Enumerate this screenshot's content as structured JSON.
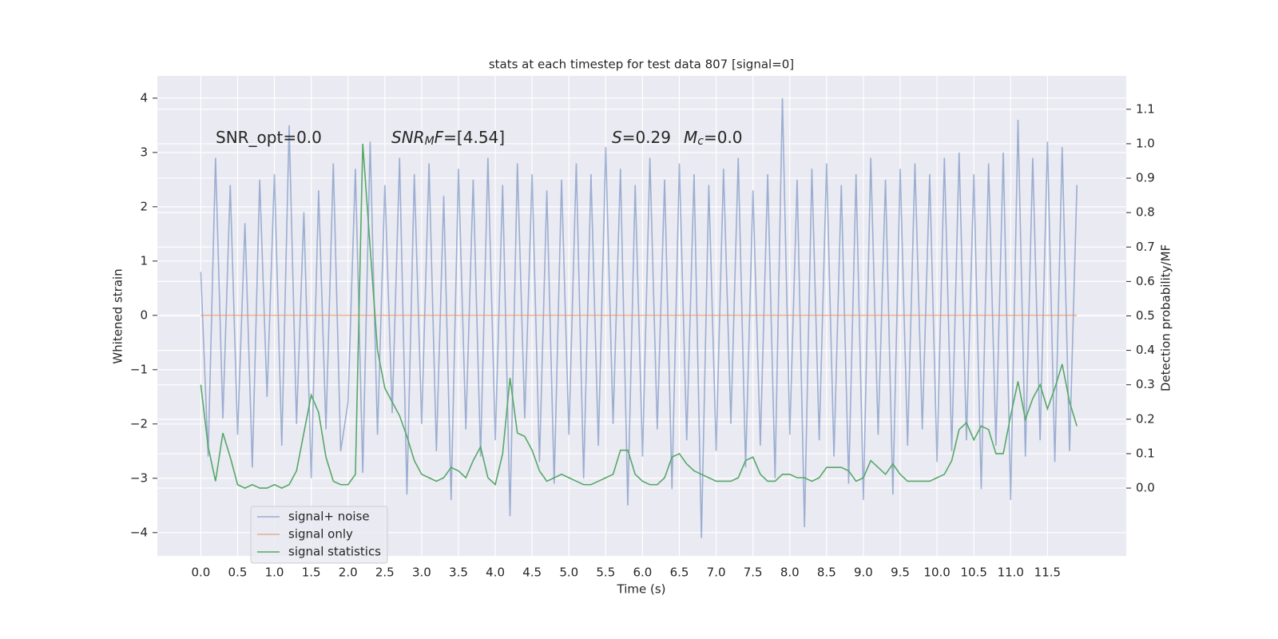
{
  "chart_data": {
    "type": "line",
    "title": "stats at each timestep for test data 807 [signal=0]",
    "xlabel": "Time (s)",
    "ylabel": "Whitened strain",
    "y2label": "Detection probability/MF",
    "annotations": [
      [
        {
          "text": "SNR_opt=0.0",
          "style": "normal"
        }
      ],
      [
        {
          "text": "SNR",
          "style": "italic"
        },
        {
          "text": "M",
          "style": "italic-sub"
        },
        {
          "text": "F",
          "style": "italic"
        },
        {
          "text": "=[4.54]",
          "style": "normal"
        }
      ],
      [
        {
          "text": "S",
          "style": "italic"
        },
        {
          "text": "=0.29",
          "style": "normal"
        },
        {
          "text": "M",
          "style": "italic"
        },
        {
          "text": "c",
          "style": "italic-sub"
        },
        {
          "text": "=0.0",
          "style": "normal"
        }
      ]
    ],
    "x": [
      0,
      0.1,
      0.2,
      0.3,
      0.4,
      0.5,
      0.6,
      0.7,
      0.8,
      0.9,
      1,
      1.1,
      1.2,
      1.3,
      1.4,
      1.5,
      1.6,
      1.7,
      1.8,
      1.9,
      2,
      2.1,
      2.2,
      2.3,
      2.4,
      2.5,
      2.6,
      2.7,
      2.8,
      2.9,
      3,
      3.1,
      3.2,
      3.3,
      3.4,
      3.5,
      3.6,
      3.7,
      3.8,
      3.9,
      4,
      4.1,
      4.2,
      4.3,
      4.4,
      4.5,
      4.6,
      4.7,
      4.8,
      4.9,
      5,
      5.1,
      5.2,
      5.3,
      5.4,
      5.5,
      5.6,
      5.7,
      5.8,
      5.9,
      6,
      6.1,
      6.2,
      6.3,
      6.4,
      6.5,
      6.6,
      6.7,
      6.8,
      6.9,
      7,
      7.1,
      7.2,
      7.3,
      7.4,
      7.5,
      7.6,
      7.7,
      7.8,
      7.9,
      8,
      8.1,
      8.2,
      8.3,
      8.4,
      8.5,
      8.6,
      8.7,
      8.8,
      8.9,
      9,
      9.1,
      9.2,
      9.3,
      9.4,
      9.5,
      9.6,
      9.7,
      9.8,
      9.9,
      10,
      10.1,
      10.2,
      10.3,
      10.4,
      10.5,
      10.6,
      10.7,
      10.8,
      10.9,
      11,
      11.1,
      11.2,
      11.3,
      11.4,
      11.5,
      11.6,
      11.7,
      11.8,
      11.9
    ],
    "series": [
      {
        "name": "signal+ noise",
        "color": "#4c72b0",
        "opacity": 0.5,
        "axis": "y",
        "values": [
          0.8,
          -2.6,
          2.9,
          -1.9,
          2.4,
          -2.2,
          1.7,
          -2.8,
          2.5,
          -1.5,
          2.6,
          -2.4,
          3.5,
          -2.0,
          1.9,
          -3.0,
          2.3,
          -2.1,
          2.8,
          -2.5,
          -1.6,
          2.7,
          -2.9,
          3.2,
          -2.2,
          2.4,
          -1.8,
          2.9,
          -3.3,
          2.6,
          -2.0,
          2.8,
          -2.5,
          2.2,
          -3.4,
          2.7,
          -2.1,
          2.5,
          -2.6,
          2.9,
          -2.3,
          2.4,
          -3.7,
          2.8,
          -1.9,
          2.6,
          -2.7,
          2.3,
          -3.1,
          2.5,
          -2.2,
          2.8,
          -3.0,
          2.6,
          -2.4,
          3.1,
          -2.0,
          2.7,
          -3.5,
          2.4,
          -2.6,
          2.9,
          -2.1,
          2.5,
          -3.2,
          2.8,
          -2.3,
          2.6,
          -4.1,
          2.4,
          -2.5,
          2.7,
          -2.0,
          2.9,
          -2.8,
          2.3,
          -2.4,
          2.6,
          -3.0,
          4.0,
          -2.2,
          2.5,
          -3.9,
          2.7,
          -2.3,
          2.8,
          -2.6,
          2.4,
          -3.1,
          2.6,
          -3.4,
          2.9,
          -2.2,
          2.5,
          -3.3,
          2.7,
          -2.4,
          2.8,
          -2.1,
          2.6,
          -2.7,
          2.9,
          -2.5,
          3.0,
          -2.3,
          2.6,
          -3.2,
          2.8,
          -2.4,
          3.0,
          -3.4,
          3.6,
          -2.6,
          2.9,
          -2.3,
          3.2,
          -2.7,
          3.1,
          -2.5,
          2.4
        ]
      },
      {
        "name": "signal only",
        "color": "#dd8452",
        "opacity": 0.6,
        "axis": "y",
        "values": [
          0,
          0,
          0,
          0,
          0,
          0,
          0,
          0,
          0,
          0,
          0,
          0,
          0,
          0,
          0,
          0,
          0,
          0,
          0,
          0,
          0,
          0,
          0,
          0,
          0,
          0,
          0,
          0,
          0,
          0,
          0,
          0,
          0,
          0,
          0,
          0,
          0,
          0,
          0,
          0,
          0,
          0,
          0,
          0,
          0,
          0,
          0,
          0,
          0,
          0,
          0,
          0,
          0,
          0,
          0,
          0,
          0,
          0,
          0,
          0,
          0,
          0,
          0,
          0,
          0,
          0,
          0,
          0,
          0,
          0,
          0,
          0,
          0,
          0,
          0,
          0,
          0,
          0,
          0,
          0,
          0,
          0,
          0,
          0,
          0,
          0,
          0,
          0,
          0,
          0,
          0,
          0,
          0,
          0,
          0,
          0,
          0,
          0,
          0,
          0,
          0,
          0,
          0,
          0,
          0,
          0,
          0,
          0,
          0,
          0,
          0,
          0,
          0,
          0,
          0,
          0,
          0,
          0,
          0,
          0
        ]
      },
      {
        "name": "signal statistics",
        "color": "#55a868",
        "opacity": 1,
        "axis": "y2",
        "values": [
          0.3,
          0.12,
          0.02,
          0.16,
          0.09,
          0.01,
          0.0,
          0.01,
          0.0,
          0.0,
          0.01,
          0.0,
          0.01,
          0.05,
          0.16,
          0.27,
          0.22,
          0.09,
          0.02,
          0.01,
          0.01,
          0.04,
          1.0,
          0.7,
          0.4,
          0.29,
          0.25,
          0.21,
          0.15,
          0.08,
          0.04,
          0.03,
          0.02,
          0.03,
          0.06,
          0.05,
          0.03,
          0.08,
          0.12,
          0.03,
          0.01,
          0.1,
          0.32,
          0.16,
          0.15,
          0.11,
          0.05,
          0.02,
          0.03,
          0.04,
          0.03,
          0.02,
          0.01,
          0.01,
          0.02,
          0.03,
          0.04,
          0.11,
          0.11,
          0.04,
          0.02,
          0.01,
          0.01,
          0.03,
          0.09,
          0.1,
          0.07,
          0.05,
          0.04,
          0.03,
          0.02,
          0.02,
          0.02,
          0.03,
          0.08,
          0.09,
          0.04,
          0.02,
          0.02,
          0.04,
          0.04,
          0.03,
          0.03,
          0.02,
          0.03,
          0.06,
          0.06,
          0.06,
          0.05,
          0.02,
          0.03,
          0.08,
          0.06,
          0.04,
          0.07,
          0.04,
          0.02,
          0.02,
          0.02,
          0.02,
          0.03,
          0.04,
          0.08,
          0.17,
          0.19,
          0.14,
          0.18,
          0.17,
          0.1,
          0.1,
          0.21,
          0.31,
          0.2,
          0.26,
          0.3,
          0.23,
          0.29,
          0.36,
          0.25,
          0.18
        ]
      }
    ],
    "xlim": [
      -0.59,
      12.57
    ],
    "ylim": [
      -4.43,
      4.41
    ],
    "y2lim": [
      -0.197,
      1.197
    ],
    "xticks": [
      {
        "value": 0,
        "label": "0.0"
      },
      0.5,
      {
        "value": 1,
        "label": "1.0"
      },
      1.5,
      {
        "value": 2,
        "label": "2.0"
      },
      2.5,
      {
        "value": 3,
        "label": "3.0"
      },
      3.5,
      {
        "value": 4,
        "label": "4.0"
      },
      4.5,
      {
        "value": 5,
        "label": "5.0"
      },
      5.5,
      {
        "value": 6,
        "label": "6.0"
      },
      6.5,
      {
        "value": 7,
        "label": "7.0"
      },
      7.5,
      {
        "value": 8,
        "label": "8.0"
      },
      8.5,
      {
        "value": 9,
        "label": "9.0"
      },
      9.5,
      {
        "value": 10,
        "label": "10.0"
      },
      10.5,
      {
        "value": 11,
        "label": "11.0"
      },
      11.5
    ],
    "yticks": [
      {
        "value": -4,
        "label": "−4"
      },
      {
        "value": -3,
        "label": "−3"
      },
      {
        "value": -2,
        "label": "−2"
      },
      {
        "value": -1,
        "label": "−1"
      },
      0,
      1,
      2,
      3,
      4
    ],
    "y2ticks": [
      {
        "value": 0,
        "label": "0.0"
      },
      0.1,
      0.2,
      0.3,
      0.4,
      0.5,
      0.6,
      0.7,
      0.8,
      0.9,
      {
        "value": 1,
        "label": "1.0"
      },
      1.1
    ],
    "grid": true,
    "legend_loc": "lower left"
  }
}
